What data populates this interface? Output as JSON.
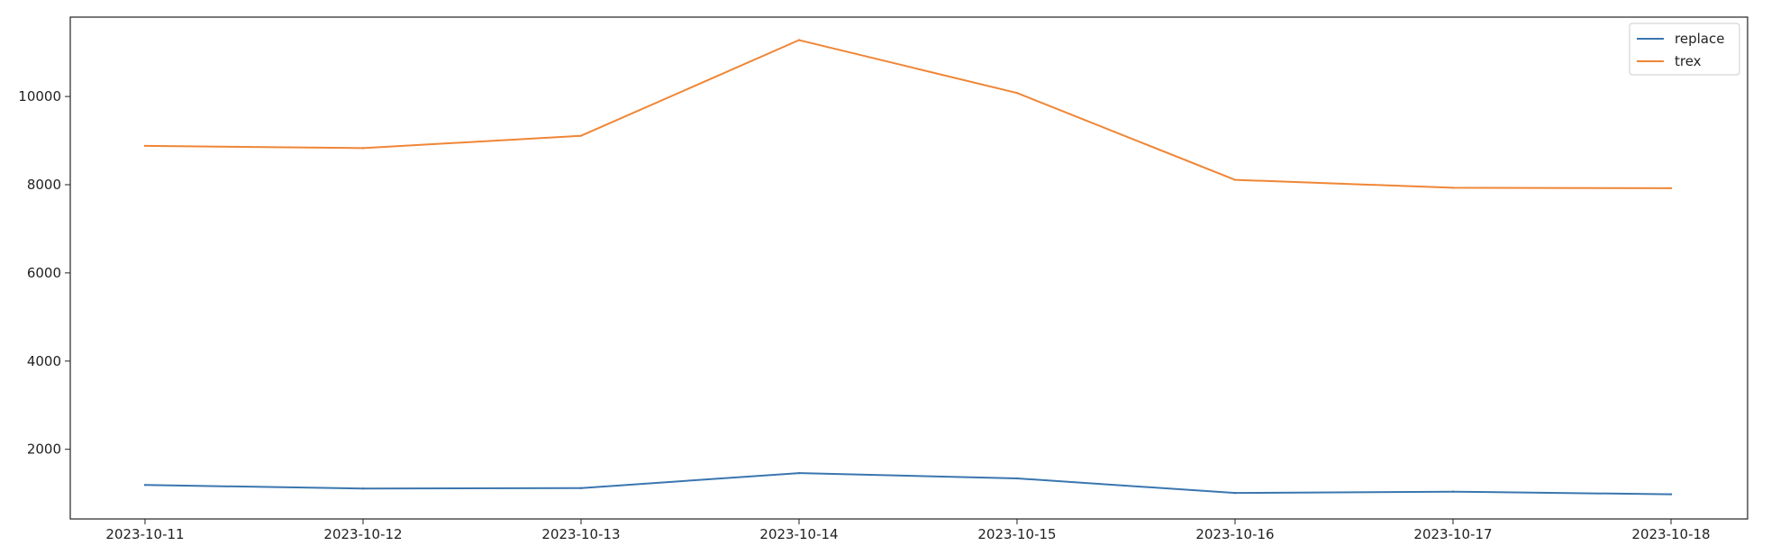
{
  "chart_data": {
    "type": "line",
    "title": "",
    "xlabel": "",
    "ylabel": "",
    "x": [
      "2023-10-11",
      "2023-10-12",
      "2023-10-13",
      "2023-10-14",
      "2023-10-15",
      "2023-10-16",
      "2023-10-17",
      "2023-10-18"
    ],
    "series": [
      {
        "name": "replace",
        "color": "#3a76af",
        "values": [
          1190,
          1110,
          1120,
          1460,
          1340,
          1010,
          1040,
          980
        ]
      },
      {
        "name": "trex",
        "color": "#ef8636",
        "values": [
          8880,
          8830,
          9110,
          11280,
          10080,
          8110,
          7930,
          7920
        ]
      }
    ],
    "yticks": [
      2000,
      4000,
      6000,
      8000,
      10000
    ],
    "ylim": [
      420,
      11800
    ],
    "grid": false,
    "legend_position": "upper right"
  }
}
